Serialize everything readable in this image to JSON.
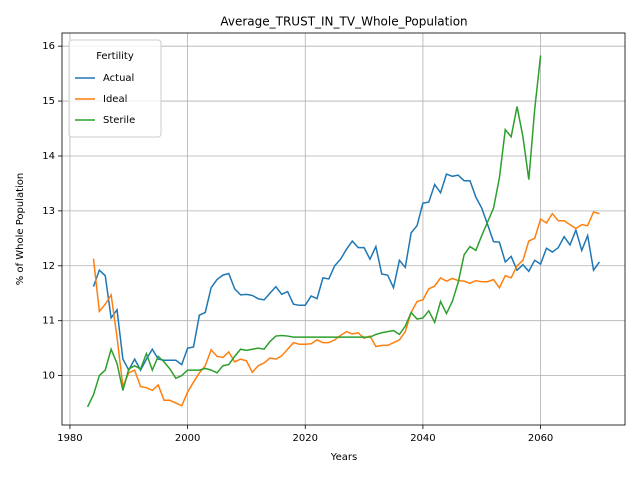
{
  "chart_data": {
    "type": "line",
    "title": "Average_TRUST_IN_TV_Whole_Population",
    "xlabel": "Years",
    "ylabel": "% of Whole Population",
    "legend_title": "Fertility",
    "legend": "upper left",
    "grid": true,
    "xlim": [
      1978.65,
      2074.35
    ],
    "ylim": [
      9.1,
      16.24
    ],
    "xticks": [
      1980,
      2000,
      2020,
      2040,
      2060
    ],
    "yticks": [
      10,
      11,
      12,
      13,
      14,
      15,
      16
    ],
    "series": [
      {
        "name": "Actual",
        "color": "#1f77b4",
        "x": [
          1984,
          1985,
          1986,
          1987,
          1988,
          1989,
          1990,
          1991,
          1992,
          1993,
          1994,
          1995,
          1996,
          1997,
          1998,
          1999,
          2000,
          2001,
          2002,
          2003,
          2004,
          2005,
          2006,
          2007,
          2008,
          2009,
          2010,
          2011,
          2012,
          2013,
          2014,
          2015,
          2016,
          2017,
          2018,
          2019,
          2020,
          2021,
          2022,
          2023,
          2024,
          2025,
          2026,
          2027,
          2028,
          2029,
          2030,
          2031,
          2032,
          2033,
          2034,
          2035,
          2036,
          2037,
          2038,
          2039,
          2040,
          2041,
          2042,
          2043,
          2044,
          2045,
          2046,
          2047,
          2048,
          2049,
          2050,
          2051,
          2052,
          2053,
          2054,
          2055,
          2056,
          2057,
          2058,
          2059,
          2060,
          2061,
          2062,
          2063,
          2064,
          2065,
          2066,
          2067,
          2068,
          2069,
          2070
        ],
        "values": [
          11.62,
          11.92,
          11.82,
          11.05,
          11.2,
          10.3,
          10.1,
          10.3,
          10.1,
          10.3,
          10.48,
          10.3,
          10.28,
          10.28,
          10.28,
          10.2,
          10.5,
          10.52,
          11.1,
          11.15,
          11.6,
          11.75,
          11.83,
          11.86,
          11.58,
          11.47,
          11.48,
          11.46,
          11.4,
          11.38,
          11.5,
          11.62,
          11.48,
          11.53,
          11.3,
          11.28,
          11.28,
          11.45,
          11.4,
          11.78,
          11.76,
          12.0,
          12.12,
          12.3,
          12.45,
          12.33,
          12.33,
          12.12,
          12.35,
          11.85,
          11.83,
          11.6,
          12.1,
          11.97,
          12.6,
          12.73,
          13.14,
          13.16,
          13.48,
          13.33,
          13.67,
          13.63,
          13.65,
          13.55,
          13.55,
          13.25,
          13.05,
          12.75,
          12.44,
          12.43,
          12.07,
          12.17,
          11.92,
          12.02,
          11.9,
          12.1,
          12.03,
          12.32,
          12.25,
          12.33,
          12.53,
          12.38,
          12.65,
          12.28,
          12.55,
          11.92,
          12.07
        ]
      },
      {
        "name": "Ideal",
        "color": "#ff7f0e",
        "x": [
          1984,
          1985,
          1986,
          1987,
          1988,
          1989,
          1990,
          1991,
          1992,
          1993,
          1994,
          1995,
          1996,
          1997,
          1998,
          1999,
          2000,
          2001,
          2002,
          2003,
          2004,
          2005,
          2006,
          2007,
          2008,
          2009,
          2010,
          2011,
          2012,
          2013,
          2014,
          2015,
          2016,
          2017,
          2018,
          2019,
          2020,
          2021,
          2022,
          2023,
          2024,
          2025,
          2026,
          2027,
          2028,
          2029,
          2030,
          2031,
          2032,
          2033,
          2034,
          2035,
          2036,
          2037,
          2038,
          2039,
          2040,
          2041,
          2042,
          2043,
          2044,
          2045,
          2046,
          2047,
          2048,
          2049,
          2050,
          2051,
          2052,
          2053,
          2054,
          2055,
          2056,
          2057,
          2058,
          2059,
          2060,
          2061,
          2062,
          2063,
          2064,
          2065,
          2066,
          2067,
          2068,
          2069,
          2070
        ],
        "values": [
          12.13,
          11.17,
          11.3,
          11.47,
          10.7,
          9.8,
          10.05,
          10.1,
          9.8,
          9.78,
          9.73,
          9.83,
          9.55,
          9.55,
          9.5,
          9.45,
          9.7,
          9.88,
          10.05,
          10.18,
          10.47,
          10.35,
          10.33,
          10.43,
          10.25,
          10.3,
          10.27,
          10.06,
          10.18,
          10.23,
          10.32,
          10.3,
          10.36,
          10.48,
          10.6,
          10.57,
          10.57,
          10.58,
          10.65,
          10.6,
          10.6,
          10.65,
          10.73,
          10.8,
          10.76,
          10.78,
          10.68,
          10.72,
          10.53,
          10.55,
          10.55,
          10.6,
          10.65,
          10.8,
          11.15,
          11.35,
          11.38,
          11.58,
          11.63,
          11.78,
          11.72,
          11.77,
          11.73,
          11.72,
          11.68,
          11.73,
          11.71,
          11.71,
          11.75,
          11.6,
          11.82,
          11.78,
          12.0,
          12.1,
          12.45,
          12.5,
          12.85,
          12.78,
          12.95,
          12.82,
          12.82,
          12.75,
          12.68,
          12.75,
          12.73,
          12.98,
          12.95
        ]
      },
      {
        "name": "Sterile",
        "color": "#2ca02c",
        "x": [
          1983,
          1984,
          1985,
          1986,
          1987,
          1988,
          1989,
          1990,
          1991,
          1992,
          1993,
          1994,
          1995,
          1996,
          1997,
          1998,
          1999,
          2000,
          2001,
          2002,
          2003,
          2004,
          2005,
          2006,
          2007,
          2008,
          2009,
          2010,
          2011,
          2012,
          2013,
          2014,
          2015,
          2016,
          2017,
          2018,
          2019,
          2020,
          2021,
          2022,
          2023,
          2024,
          2025,
          2026,
          2027,
          2028,
          2029,
          2030,
          2031,
          2032,
          2033,
          2034,
          2035,
          2036,
          2037,
          2038,
          2039,
          2040,
          2041,
          2042,
          2043,
          2044,
          2045,
          2046,
          2047,
          2048,
          2049,
          2050,
          2051,
          2052,
          2053,
          2054,
          2055,
          2056,
          2057,
          2058,
          2059,
          2060
        ],
        "values": [
          9.43,
          9.65,
          10.0,
          10.1,
          10.48,
          10.22,
          9.73,
          10.12,
          10.18,
          10.12,
          10.4,
          10.1,
          10.35,
          10.25,
          10.12,
          9.95,
          10.0,
          10.1,
          10.1,
          10.1,
          10.13,
          10.1,
          10.05,
          10.18,
          10.2,
          10.35,
          10.48,
          10.46,
          10.48,
          10.5,
          10.48,
          10.62,
          10.72,
          10.73,
          10.72,
          10.7,
          10.7,
          10.7,
          10.7,
          10.7,
          10.7,
          10.7,
          10.7,
          10.7,
          10.7,
          10.7,
          10.7,
          10.7,
          10.7,
          10.75,
          10.78,
          10.8,
          10.82,
          10.75,
          10.9,
          11.15,
          11.03,
          11.05,
          11.18,
          10.97,
          11.35,
          11.13,
          11.35,
          11.7,
          12.2,
          12.35,
          12.28,
          12.55,
          12.8,
          13.05,
          13.6,
          14.48,
          14.35,
          14.9,
          14.35,
          13.57,
          14.85,
          15.83
        ]
      }
    ]
  }
}
